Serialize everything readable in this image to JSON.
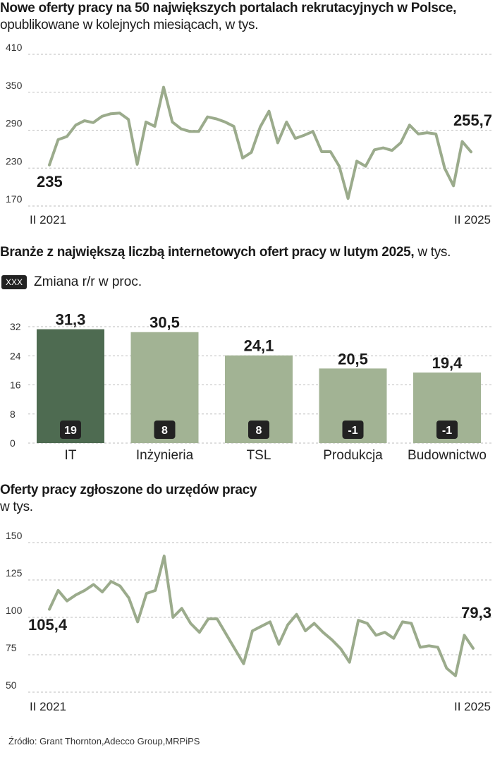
{
  "texts": {
    "title1_bold": "Nowe oferty pracy na 50 największych portalach rekrutacyjnych w Polsce,",
    "title1_rest": " opublikowane w kolejnych miesiącach, w tys.",
    "title2_bold": "Branże z największą liczbą internetowych ofert pracy w  lutym 2025,",
    "title2_rest": " w tys.",
    "legend_box": "XXX",
    "legend_label": "Zmiana r/r w proc.",
    "title3_bold": "Oferty pracy zgłoszone do urzędów pracy",
    "title3_rest": "w tys.",
    "source": "Źródło: Grant Thornton,Adecco Group,MRPiPS"
  },
  "colors": {
    "line": "#9bab8c",
    "bar_highlight": "#4e6b51",
    "bar": "#a2b394",
    "badge": "#222222"
  },
  "chart_data": [
    {
      "type": "line",
      "title": "Nowe oferty pracy na 50 największych portalach rekrutacyjnych w Polsce, opublikowane w kolejnych miesiącach, w tys.",
      "x_start_label": "II 2021",
      "x_end_label": "II 2025",
      "yticks": [
        "410",
        "350",
        "290",
        "230",
        "170"
      ],
      "ylim": [
        170,
        410
      ],
      "values": [
        235,
        275,
        280,
        298,
        305,
        302,
        312,
        316,
        317,
        307,
        236,
        303,
        296,
        358,
        303,
        292,
        288,
        288,
        311,
        308,
        303,
        296,
        246,
        255,
        295,
        320,
        270,
        303,
        277,
        282,
        288,
        256,
        256,
        233,
        182,
        241,
        233,
        259,
        262,
        258,
        270,
        298,
        284,
        286,
        284,
        230,
        202,
        272,
        255.7
      ],
      "start_label": "235",
      "end_label": "255,7"
    },
    {
      "type": "bar",
      "title": "Branże z największą liczbą internetowych ofert pracy w  lutym 2025, w tys.",
      "categories": [
        "IT",
        "Inżynieria",
        "TSL",
        "Produkcja",
        "Budownictwo"
      ],
      "values": [
        31.3,
        30.5,
        24.1,
        20.5,
        19.4
      ],
      "value_labels": [
        "31,3",
        "30,5",
        "24,1",
        "20,5",
        "19,4"
      ],
      "change_yoy": [
        "19",
        "8",
        "8",
        "-1",
        "-1"
      ],
      "yticks": [
        "32",
        "24",
        "16",
        "8",
        "0"
      ],
      "ylim": [
        0,
        32
      ],
      "highlight_index": 0
    },
    {
      "type": "line",
      "title": "Oferty pracy zgłoszone do urzędów pracy, w tys.",
      "x_start_label": "II 2021",
      "x_end_label": "II 2025",
      "yticks": [
        "150",
        "125",
        "100",
        "75",
        "50"
      ],
      "ylim": [
        50,
        150
      ],
      "values": [
        105.4,
        118,
        111,
        115,
        118,
        122,
        117,
        124,
        121,
        113,
        97,
        116,
        118,
        141,
        100,
        106,
        96,
        90,
        99,
        99,
        89,
        79,
        69,
        91,
        94,
        97,
        82,
        95,
        102,
        91,
        96,
        90,
        85,
        79,
        70,
        98,
        96,
        88,
        90,
        86,
        97,
        96,
        80,
        81,
        80,
        66,
        61,
        88,
        79.3
      ],
      "start_label": "105,4",
      "end_label": "79,3"
    }
  ]
}
